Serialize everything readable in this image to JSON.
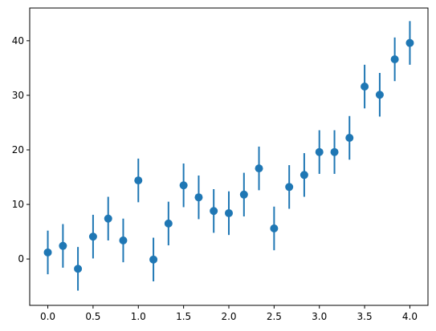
{
  "chart_data": {
    "type": "errorbar",
    "color": "#1f77b4",
    "x": [
      0,
      0.167,
      0.333,
      0.5,
      0.667,
      0.833,
      1,
      1.167,
      1.333,
      1.5,
      1.667,
      1.833,
      2,
      2.167,
      2.333,
      2.5,
      2.667,
      2.833,
      3,
      3.167,
      3.333,
      3.5,
      3.667,
      3.833,
      4
    ],
    "values": [
      1.2,
      2.4,
      -1.8,
      4.1,
      7.4,
      3.4,
      14.4,
      -0.1,
      6.5,
      13.5,
      11.3,
      8.8,
      8.4,
      11.8,
      16.6,
      5.6,
      13.2,
      15.4,
      19.6,
      19.6,
      22.2,
      31.6,
      30.1,
      36.6,
      39.6
    ],
    "errors": [
      4,
      4,
      4,
      4,
      4,
      4,
      4,
      4,
      4,
      4,
      4,
      4,
      4,
      4,
      4,
      4,
      4,
      4,
      4,
      4,
      4,
      4,
      4,
      4,
      4
    ],
    "xlim": [
      -0.2,
      4.2
    ],
    "ylim": [
      -8.5,
      46
    ],
    "xticks": [
      {
        "value": 0,
        "label": "0.0"
      },
      {
        "value": 0.5,
        "label": "0.5"
      },
      {
        "value": 1,
        "label": "1.0"
      },
      {
        "value": 1.5,
        "label": "1.5"
      },
      {
        "value": 2,
        "label": "2.0"
      },
      {
        "value": 2.5,
        "label": "2.5"
      },
      {
        "value": 3,
        "label": "3.0"
      },
      {
        "value": 3.5,
        "label": "3.5"
      },
      {
        "value": 4,
        "label": "4.0"
      }
    ],
    "yticks": [
      0,
      10,
      20,
      30,
      40
    ],
    "grid": false
  }
}
